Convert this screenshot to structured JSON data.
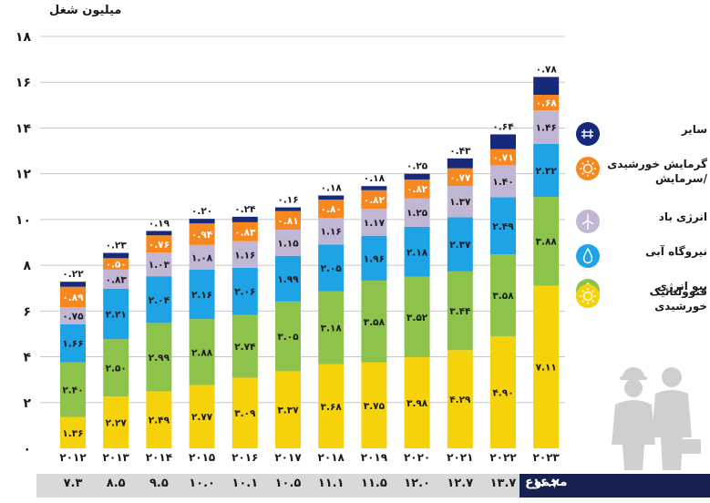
{
  "chart_data": {
    "type": "bar",
    "stacked": true,
    "ylabel": "میلیون شغل",
    "ylim": [
      0,
      18
    ],
    "yticks": [
      0,
      2,
      4,
      6,
      8,
      10,
      12,
      14,
      16,
      18
    ],
    "ytick_labels": [
      "۰",
      "۲",
      "۴",
      "۶",
      "۸",
      "۱۰",
      "۱۲",
      "۱۴",
      "۱۶",
      "۱۸"
    ],
    "categories": [
      "۲۰۱۲",
      "۲۰۱۳",
      "۲۰۱۴",
      "۲۰۱۵",
      "۲۰۱۶",
      "۲۰۱۷",
      "۲۰۱۸",
      "۲۰۱۹",
      "۲۰۲۰",
      "۲۰۲۱",
      "۲۰۲۲",
      "۲۰۲۳"
    ],
    "grid": true,
    "legend_position": "right",
    "series": [
      {
        "name": "فتوولتائیک خورشیدی",
        "color": "#f5d20a",
        "values": [
          1.36,
          2.27,
          2.49,
          2.77,
          3.09,
          3.37,
          3.68,
          3.75,
          3.98,
          4.29,
          4.9,
          7.11
        ],
        "labels": [
          "۱.۳۶",
          "۲.۲۷",
          "۲.۴۹",
          "۲.۷۷",
          "۳.۰۹",
          "۳.۳۷",
          "۳.۶۸",
          "۳.۷۵",
          "۳.۹۸",
          "۴.۲۹",
          "۴.۹۰",
          "۷.۱۱"
        ]
      },
      {
        "name": "بیو انرژی",
        "color": "#8dc34a",
        "values": [
          2.4,
          2.5,
          2.99,
          2.88,
          2.74,
          3.05,
          3.18,
          3.58,
          3.52,
          3.44,
          3.58,
          3.88
        ],
        "labels": [
          "۲.۴۰",
          "۲.۵۰",
          "۲.۹۹",
          "۲.۸۸",
          "۲.۷۴",
          "۳.۰۵",
          "۳.۱۸",
          "۳.۵۸",
          "۳.۵۲",
          "۳.۴۴",
          "۳.۵۸",
          "۳.۸۸"
        ]
      },
      {
        "name": "نیروگاه آبی",
        "color": "#1ea3e6",
        "values": [
          1.66,
          2.21,
          2.04,
          2.16,
          2.06,
          1.99,
          2.05,
          1.96,
          2.18,
          2.37,
          2.49,
          2.32
        ],
        "labels": [
          "۱.۶۶",
          "۲.۲۱",
          "۲.۰۴",
          "۲.۱۶",
          "۲.۰۶",
          "۱.۹۹",
          "۲.۰۵",
          "۱.۹۶",
          "۲.۱۸",
          "۲.۳۷",
          "۲.۴۹",
          "۲.۳۲"
        ]
      },
      {
        "name": "انرژی باد",
        "color": "#c1b6d4",
        "values": [
          0.75,
          0.83,
          1.03,
          1.08,
          1.16,
          1.15,
          1.16,
          1.17,
          1.25,
          1.37,
          1.4,
          1.46
        ],
        "labels": [
          "۰.۷۵",
          "۰.۸۳",
          "۱.۰۳",
          "۱.۰۸",
          "۱.۱۶",
          "۱.۱۵",
          "۱.۱۶",
          "۱.۱۷",
          "۱.۲۵",
          "۱.۳۷",
          "۱.۴۰",
          "۱.۴۶"
        ]
      },
      {
        "name": "گرمایش خورشیدی /سرمایش",
        "color": "#f7871f",
        "values": [
          0.89,
          0.5,
          0.76,
          0.94,
          0.83,
          0.81,
          0.8,
          0.82,
          0.82,
          0.77,
          0.71,
          0.68
        ],
        "labels": [
          "۰.۸۹",
          "۰.۵۰",
          "۰.۷۶",
          "۰.۹۴",
          "۰.۸۳",
          "۰.۸۱",
          "۰.۸۰",
          "۰.۸۲",
          "۰.۸۲",
          "۰.۷۷",
          "۰.۷۱",
          "۰.۶۸"
        ]
      },
      {
        "name": "سایر",
        "color": "#16297a",
        "values": [
          0.22,
          0.23,
          0.19,
          0.2,
          0.24,
          0.16,
          0.18,
          0.18,
          0.25,
          0.43,
          0.64,
          0.78
        ],
        "labels": [
          "۰.۲۲",
          "۰.۲۳",
          "۰.۱۹",
          "۰.۲۰",
          "۰.۲۴",
          "۰.۱۶",
          "۰.۱۸",
          "۰.۱۸",
          "۰.۲۵",
          "۰.۴۳",
          "۰.۶۴",
          "۰.۷۸"
        ]
      }
    ],
    "totals": {
      "label": "مجموع",
      "values": [
        7.3,
        8.5,
        9.5,
        10.0,
        10.1,
        10.5,
        11.1,
        11.5,
        12.0,
        12.7,
        13.7,
        16.2
      ],
      "labels": [
        "۷.۳",
        "۸.۵",
        "۹.۵",
        "۱۰.۰",
        "۱۰.۱",
        "۱۰.۵",
        "۱۱.۱",
        "۱۱.۵",
        "۱۲.۰",
        "۱۲.۷",
        "۱۳.۷",
        "۱۶.۲"
      ]
    }
  },
  "legend": [
    {
      "label": "سایر",
      "icon": "grid-icon",
      "color": "#16297a"
    },
    {
      "label": "گرمایش خورشیدی /سرمایش",
      "icon": "sun-icon",
      "color": "#f7871f"
    },
    {
      "label": "انرژی باد",
      "icon": "wind-turbine-icon",
      "color": "#c1b6d4"
    },
    {
      "label": "نیروگاه آبی",
      "icon": "water-drop-icon",
      "color": "#1ea3e6"
    },
    {
      "label": "بیو انرژی",
      "icon": "leaf-icon",
      "color": "#8dc34a"
    },
    {
      "label": "فتوولتائیک خورشیدی",
      "icon": "sun-icon",
      "color": "#f5d20a"
    }
  ]
}
